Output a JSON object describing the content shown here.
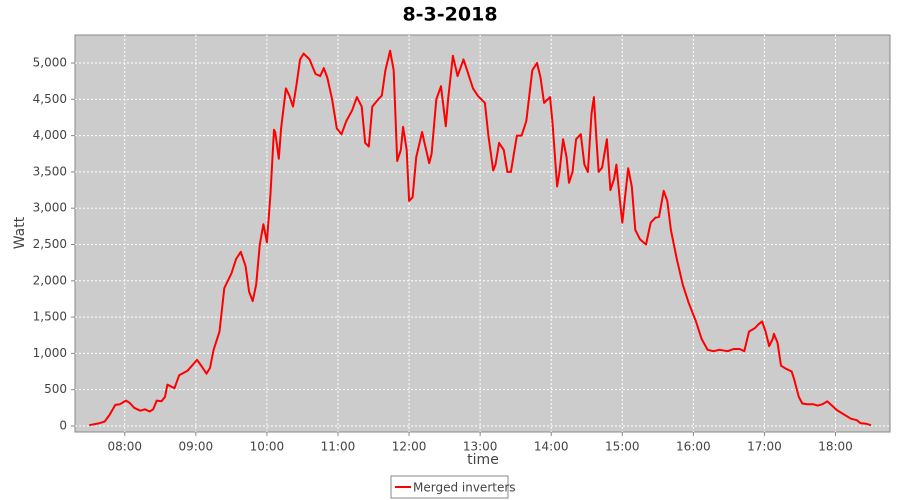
{
  "chart_data": {
    "type": "line",
    "title": "8-3-2018",
    "x_label": "time",
    "y_label": "Watt",
    "x": [
      "07:30",
      "07:39",
      "07:43",
      "07:47",
      "07:52",
      "07:56",
      "08:01",
      "08:04",
      "08:08",
      "08:13",
      "08:17",
      "08:21",
      "08:24",
      "08:27",
      "08:31",
      "08:34",
      "08:36",
      "08:42",
      "08:46",
      "08:53",
      "09:01",
      "09:05",
      "09:09",
      "09:12",
      "09:15",
      "09:20",
      "09:24",
      "09:30",
      "09:34",
      "09:38",
      "09:42",
      "09:45",
      "09:48",
      "09:51",
      "09:54",
      "09:57",
      "10:00",
      "10:03",
      "10:06",
      "10:07",
      "10:10",
      "10:12",
      "10:16",
      "10:19",
      "10:22",
      "10:25",
      "10:28",
      "10:31",
      "10:36",
      "10:41",
      "10:45",
      "10:48",
      "10:51",
      "10:55",
      "10:59",
      "11:03",
      "11:07",
      "11:12",
      "11:16",
      "11:20",
      "11:23",
      "11:26",
      "11:29",
      "11:34",
      "11:37",
      "11:40",
      "11:44",
      "11:47",
      "11:50",
      "11:53",
      "11:55",
      "11:58",
      "12:00",
      "12:03",
      "12:06",
      "12:11",
      "12:13",
      "12:17",
      "12:19",
      "12:23",
      "12:27",
      "12:31",
      "12:33",
      "12:37",
      "12:41",
      "12:46",
      "12:49",
      "12:54",
      "12:58",
      "13:04",
      "13:07",
      "13:11",
      "13:13",
      "13:16",
      "13:20",
      "13:23",
      "13:26",
      "13:31",
      "13:35",
      "13:39",
      "13:44",
      "13:48",
      "13:51",
      "13:54",
      "13:59",
      "14:01",
      "14:05",
      "14:07",
      "14:10",
      "14:13",
      "14:15",
      "14:18",
      "14:21",
      "14:25",
      "14:28",
      "14:31",
      "14:34",
      "14:36",
      "14:38",
      "14:40",
      "14:43",
      "14:47",
      "14:50",
      "14:53",
      "14:55",
      "14:58",
      "15:00",
      "15:03",
      "15:05",
      "15:08",
      "15:11",
      "15:15",
      "15:20",
      "15:24",
      "15:28",
      "15:31",
      "15:35",
      "15:38",
      "15:41",
      "15:46",
      "15:51",
      "15:56",
      "16:02",
      "16:07",
      "16:12",
      "16:17",
      "16:22",
      "16:29",
      "16:34",
      "16:39",
      "16:43",
      "16:47",
      "16:52",
      "16:55",
      "16:58",
      "17:01",
      "17:04",
      "17:07",
      "17:08",
      "17:11",
      "17:14",
      "17:18",
      "17:23",
      "17:25",
      "17:29",
      "17:32",
      "17:36",
      "17:41",
      "17:45",
      "17:49",
      "17:53",
      "17:57",
      "18:01",
      "18:07",
      "18:13",
      "18:18",
      "18:21",
      "18:26",
      "18:30"
    ],
    "series": [
      {
        "name": "Merged inverters",
        "color": "#ff0000",
        "values": [
          10,
          40,
          60,
          150,
          290,
          300,
          350,
          320,
          250,
          210,
          230,
          200,
          230,
          350,
          340,
          400,
          570,
          520,
          700,
          760,
          910,
          820,
          720,
          800,
          1050,
          1300,
          1900,
          2100,
          2300,
          2400,
          2200,
          1850,
          1720,
          1950,
          2500,
          2780,
          2530,
          3200,
          4080,
          4050,
          3680,
          4100,
          4650,
          4550,
          4400,
          4700,
          5050,
          5130,
          5050,
          4850,
          4820,
          4930,
          4800,
          4500,
          4100,
          4020,
          4200,
          4350,
          4530,
          4400,
          3900,
          3850,
          4400,
          4500,
          4550,
          4900,
          5170,
          4900,
          3650,
          3800,
          4120,
          3800,
          3100,
          3150,
          3700,
          4050,
          3900,
          3620,
          3750,
          4500,
          4680,
          4130,
          4500,
          5100,
          4820,
          5050,
          4900,
          4650,
          4550,
          4450,
          4000,
          3520,
          3600,
          3900,
          3800,
          3500,
          3500,
          4000,
          4000,
          4200,
          4900,
          5000,
          4800,
          4450,
          4530,
          4200,
          3300,
          3500,
          3950,
          3700,
          3350,
          3500,
          3950,
          4020,
          3600,
          3500,
          4300,
          4530,
          4000,
          3500,
          3560,
          3950,
          3250,
          3400,
          3600,
          3100,
          2800,
          3250,
          3550,
          3300,
          2700,
          2570,
          2500,
          2800,
          2870,
          2880,
          3240,
          3100,
          2700,
          2300,
          1950,
          1700,
          1450,
          1200,
          1050,
          1030,
          1050,
          1030,
          1060,
          1060,
          1030,
          1300,
          1350,
          1400,
          1440,
          1300,
          1100,
          1200,
          1270,
          1150,
          830,
          790,
          750,
          650,
          400,
          310,
          300,
          300,
          280,
          300,
          340,
          280,
          220,
          160,
          100,
          80,
          40,
          30,
          10
        ]
      }
    ],
    "xlim": [
      "07:18",
      "18:46"
    ],
    "xticks": [
      "08:00",
      "09:00",
      "10:00",
      "11:00",
      "12:00",
      "13:00",
      "14:00",
      "15:00",
      "16:00",
      "17:00",
      "18:00"
    ],
    "ylim": [
      -83,
      5386
    ],
    "yticks": [
      0,
      500,
      {
        "value": 1000,
        "label": "1,000"
      },
      {
        "value": 1500,
        "label": "1,500"
      },
      {
        "value": 2000,
        "label": "2,000"
      },
      {
        "value": 2500,
        "label": "2,500"
      },
      {
        "value": 3000,
        "label": "3,000"
      },
      {
        "value": 3500,
        "label": "3,500"
      },
      {
        "value": 4000,
        "label": "4,000"
      },
      {
        "value": 4500,
        "label": "4,500"
      },
      {
        "value": 5000,
        "label": "5,000"
      }
    ],
    "grid": true,
    "legend": "bottom"
  }
}
